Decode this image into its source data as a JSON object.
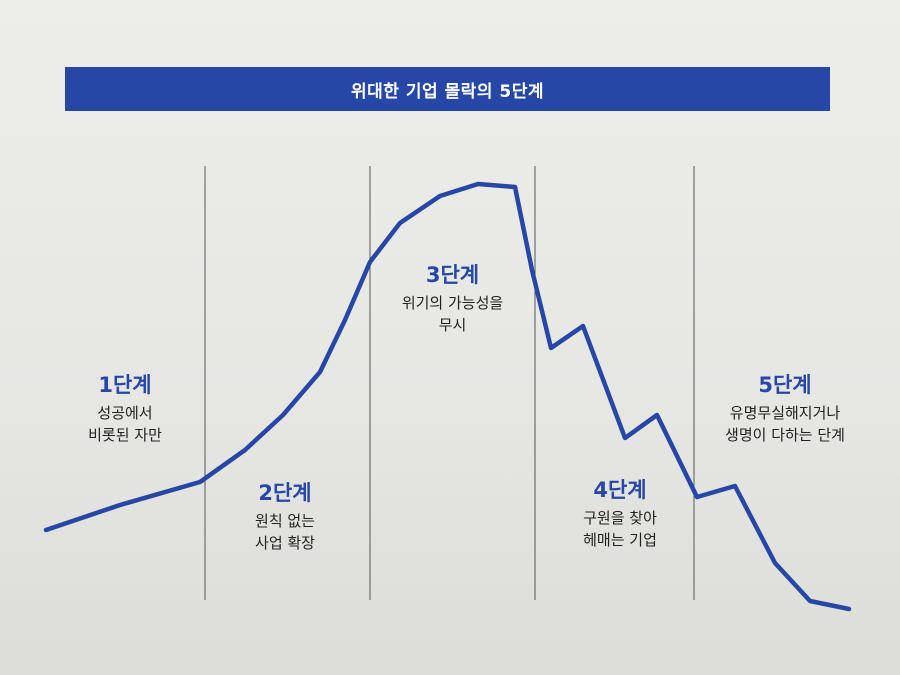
{
  "banner": {
    "title": "위대한 기업 몰락의 5단계"
  },
  "stages": [
    {
      "title": "1단계",
      "desc_lines": [
        "성공에서",
        "비롯된 자만"
      ]
    },
    {
      "title": "2단계",
      "desc_lines": [
        "원칙 없는",
        "사업 확장"
      ]
    },
    {
      "title": "3단계",
      "desc_lines": [
        "위기의 가능성을",
        "무시"
      ]
    },
    {
      "title": "4단계",
      "desc_lines": [
        "구원을 찾아",
        "헤매는 기업"
      ]
    },
    {
      "title": "5단계",
      "desc_lines": [
        "유명무실해지거나",
        "생명이 다하는 단계"
      ]
    }
  ],
  "colors": {
    "accent": "#2747a6",
    "divider": "#555555",
    "text": "#222222"
  }
}
